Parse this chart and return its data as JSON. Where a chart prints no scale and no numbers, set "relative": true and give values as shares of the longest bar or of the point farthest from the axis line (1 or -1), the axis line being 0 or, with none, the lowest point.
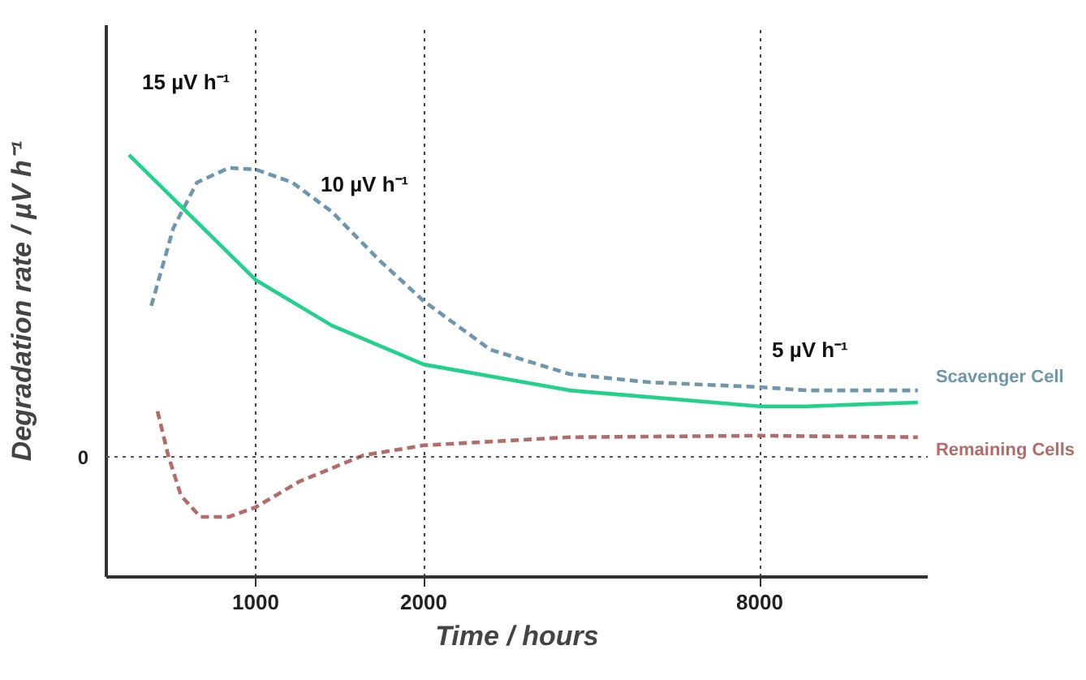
{
  "chart_data": {
    "type": "line",
    "xlabel": "Time / hours",
    "ylabel": "Degradation rate / µV h⁻¹",
    "relative": true,
    "log": "x",
    "xlim": [
      540,
      16000
    ],
    "xticks": [
      1000,
      2000,
      8000
    ],
    "grid": "x",
    "legend": false,
    "ref_lines": [
      {
        "axis": "y",
        "value": 0,
        "label": "0",
        "line_style": "dotted",
        "color": "#555555"
      }
    ],
    "annotations": [
      "15 µV h⁻¹",
      "10 µV h⁻¹",
      "5 µV h⁻¹"
    ],
    "series": [
      {
        "name": "Scavenger Cell",
        "color": "#6e97ad",
        "line_style": "dashed",
        "x": [
          650,
          712,
          785,
          895,
          1000,
          1163,
          1369,
          1666,
          2000,
          2632,
          3654,
          5063,
          8000,
          9730,
          15360
        ],
        "values": [
          0.5,
          0.758,
          0.909,
          0.957,
          0.952,
          0.909,
          0.812,
          0.651,
          0.516,
          0.355,
          0.274,
          0.247,
          0.231,
          0.22,
          0.22
        ]
      },
      {
        "color": "#22d18b",
        "line_style": "solid",
        "x": [
          593,
          712,
          1000,
          1369,
          2000,
          3654,
          8000,
          9730,
          12630,
          15360
        ],
        "values": [
          1.0,
          0.855,
          0.586,
          0.435,
          0.306,
          0.22,
          0.167,
          0.167,
          0.175,
          0.18
        ]
      },
      {
        "name": "Remaining Cells",
        "color": "#b36b6b",
        "line_style": "dashed",
        "x": [
          667,
          697,
          735,
          796,
          895,
          1000,
          1200,
          1560,
          2000,
          3654,
          8000,
          15360
        ],
        "values": [
          0.151,
          0.005,
          -0.129,
          -0.199,
          -0.199,
          -0.167,
          -0.081,
          0.005,
          0.038,
          0.065,
          0.07,
          0.065
        ]
      }
    ]
  }
}
